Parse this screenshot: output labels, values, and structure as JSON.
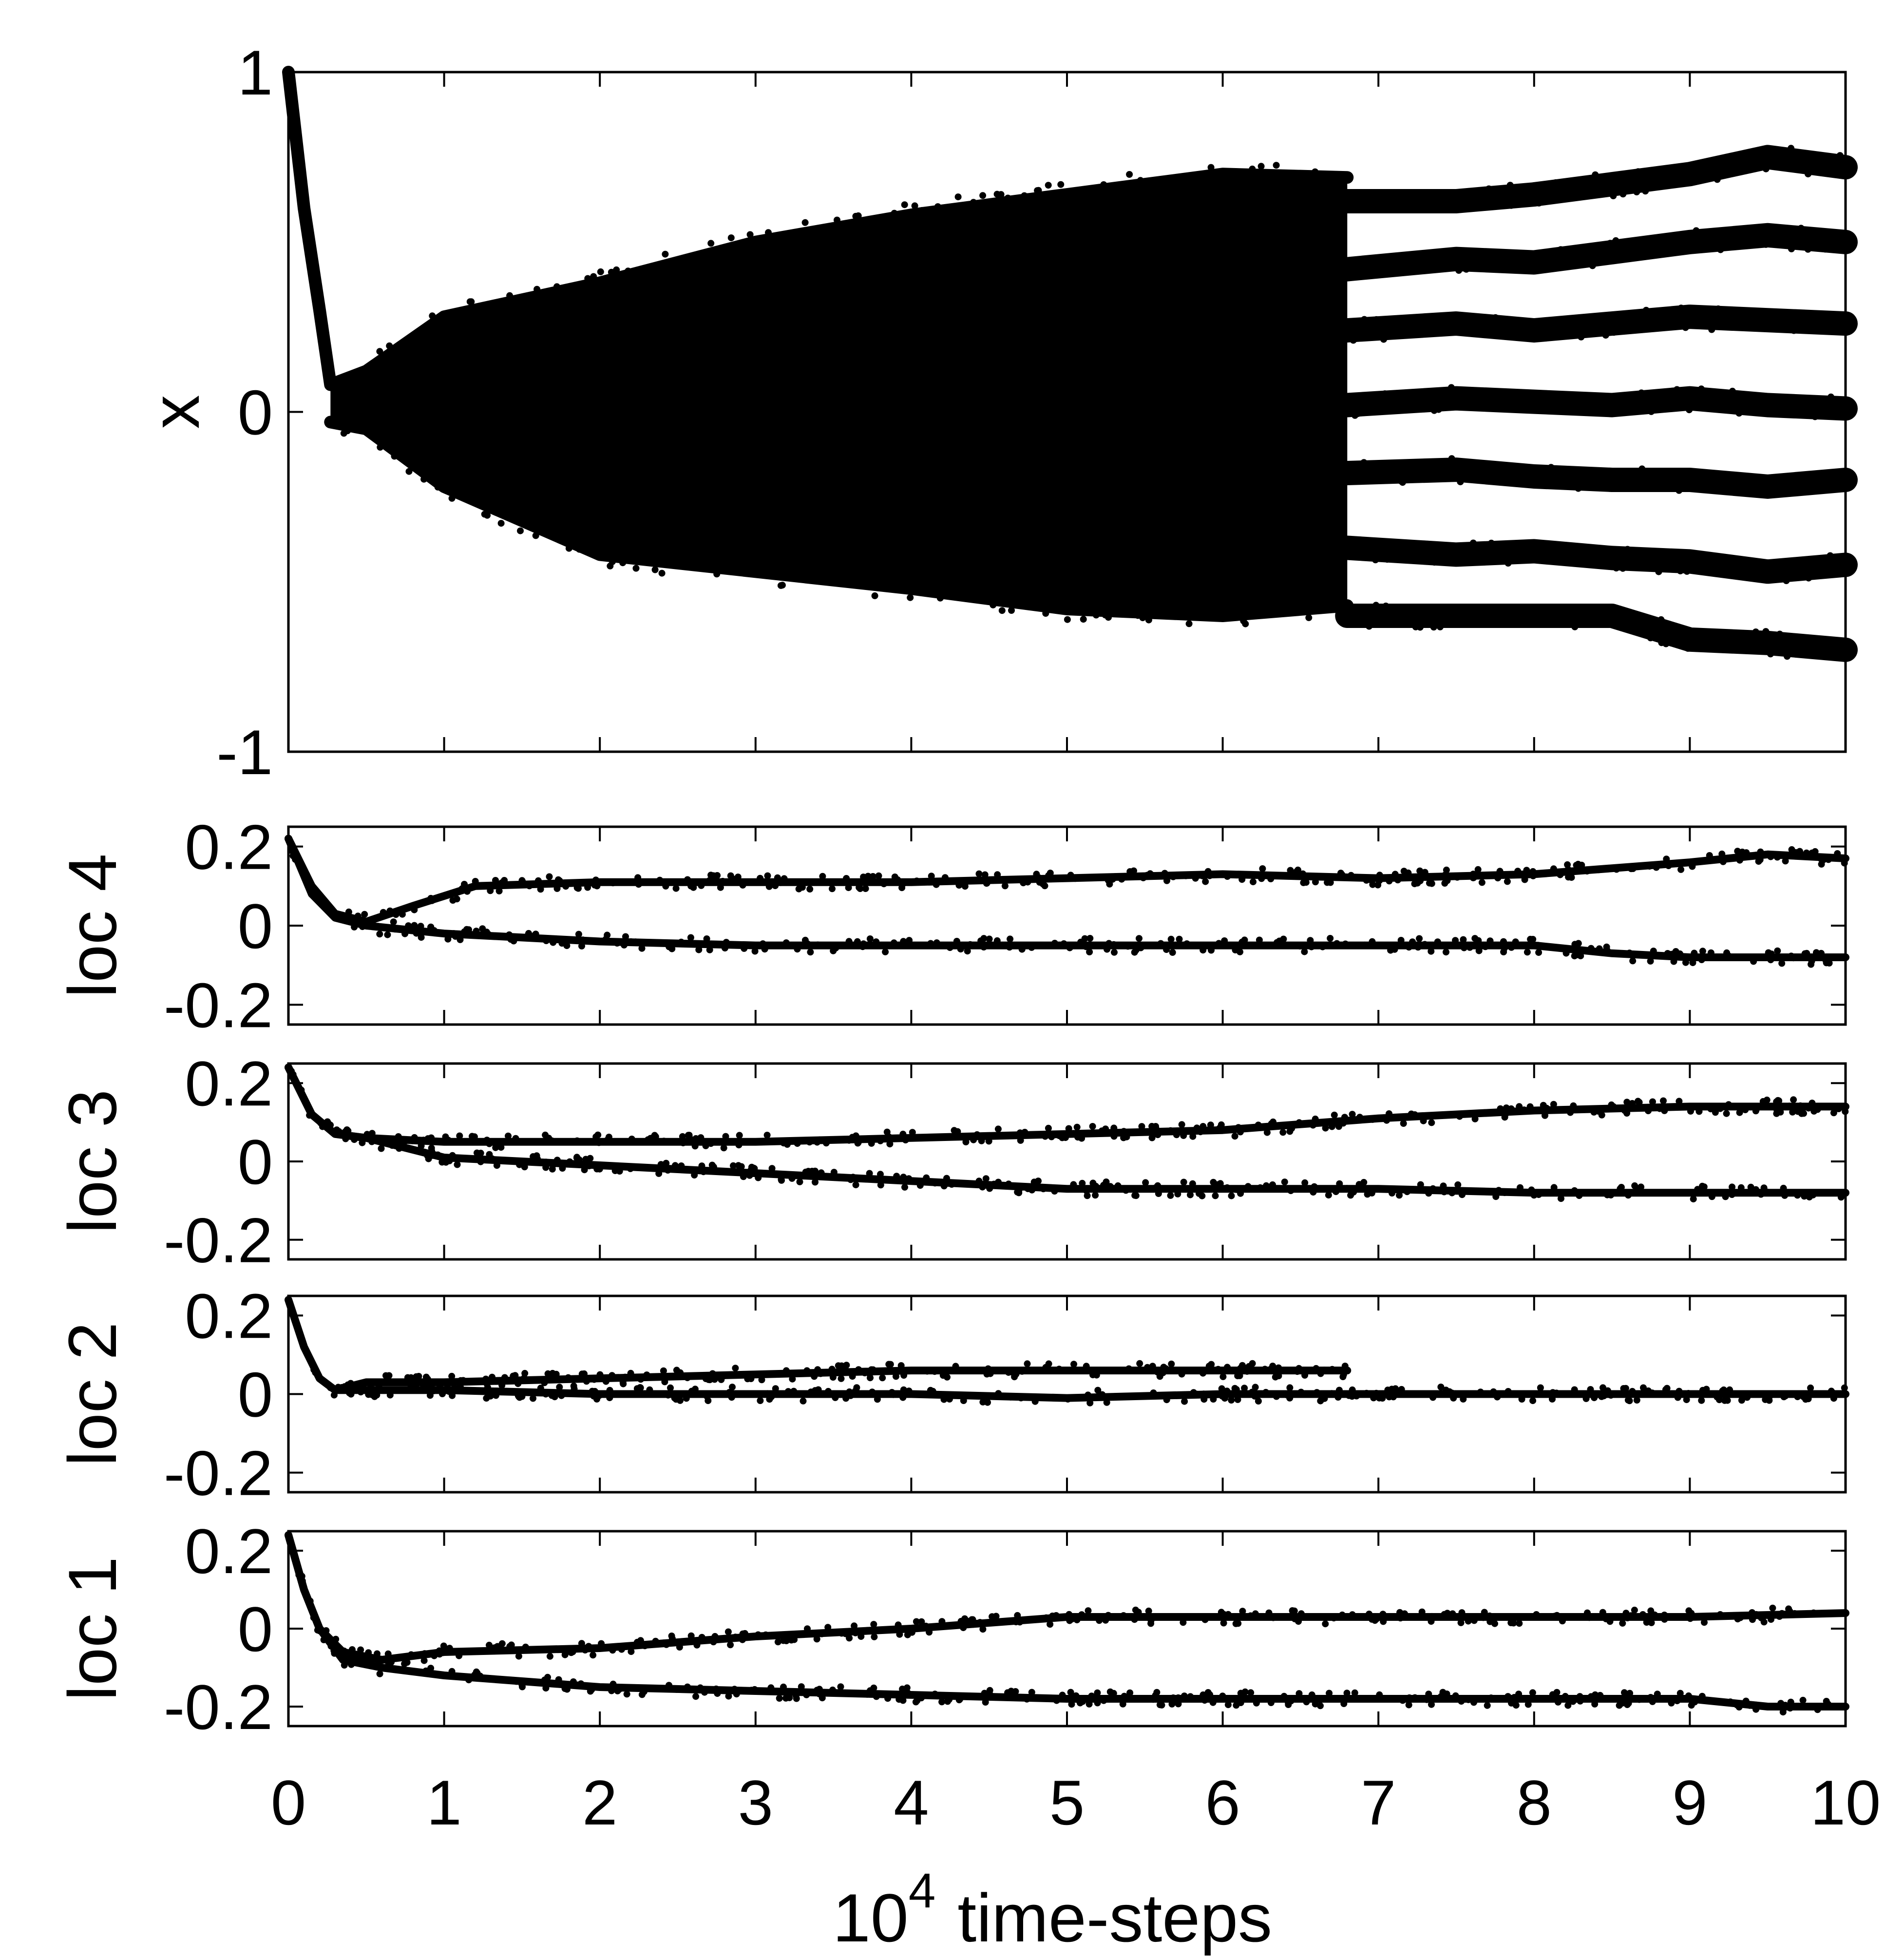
{
  "chart_data": [
    {
      "id": "x",
      "type": "scatter",
      "ylabel": "x",
      "ylim": [
        -1,
        1
      ],
      "yticks": [
        -1,
        0,
        1
      ],
      "yticklabels": [
        "-1",
        "0",
        "1"
      ],
      "xlim": [
        0,
        10
      ],
      "description_note": "dense cloud of trajectories for 0.3-6.8, splitting into 7 bands after 6.8",
      "series": [
        {
          "x": [
            0,
            0.1,
            0.2,
            0.27,
            0.5,
            1,
            2,
            3,
            4,
            5,
            6,
            6.8
          ],
          "y": [
            1,
            0.6,
            0.3,
            0.08,
            0.12,
            0.28,
            0.38,
            0.5,
            0.58,
            0.64,
            0.7,
            0.69
          ]
        },
        {
          "x": [
            0.27,
            0.5,
            1,
            2,
            3,
            4,
            5,
            6,
            6.8
          ],
          "y": [
            -0.03,
            -0.05,
            -0.22,
            -0.42,
            -0.47,
            -0.52,
            -0.58,
            -0.6,
            -0.57
          ]
        },
        {
          "x": [
            6.8,
            7.5,
            8,
            8.5,
            9,
            9.5,
            10
          ],
          "y": [
            0.62,
            0.62,
            0.64,
            0.67,
            0.7,
            0.75,
            0.72
          ]
        },
        {
          "x": [
            6.8,
            7.5,
            8,
            8.5,
            9,
            9.5,
            10
          ],
          "y": [
            0.42,
            0.45,
            0.44,
            0.47,
            0.5,
            0.52,
            0.5
          ]
        },
        {
          "x": [
            6.8,
            7.5,
            8,
            8.5,
            9,
            9.5,
            10
          ],
          "y": [
            0.24,
            0.26,
            0.24,
            0.26,
            0.28,
            0.27,
            0.26
          ]
        },
        {
          "x": [
            6.8,
            7.5,
            8,
            8.5,
            9,
            9.5,
            10
          ],
          "y": [
            0.02,
            0.04,
            0.03,
            0.02,
            0.04,
            0.02,
            0.01
          ]
        },
        {
          "x": [
            6.8,
            7.5,
            8,
            8.5,
            9,
            9.5,
            10
          ],
          "y": [
            -0.18,
            -0.17,
            -0.19,
            -0.2,
            -0.2,
            -0.22,
            -0.2
          ]
        },
        {
          "x": [
            6.8,
            7.5,
            8,
            8.5,
            9,
            9.5,
            10
          ],
          "y": [
            -0.4,
            -0.42,
            -0.41,
            -0.43,
            -0.44,
            -0.47,
            -0.45
          ]
        },
        {
          "x": [
            6.8,
            7.5,
            8,
            8.5,
            9,
            9.5,
            10
          ],
          "y": [
            -0.6,
            -0.6,
            -0.6,
            -0.6,
            -0.67,
            -0.68,
            -0.7
          ]
        }
      ]
    },
    {
      "id": "loc4",
      "type": "scatter",
      "ylabel": "loc 4",
      "ylim": [
        -0.25,
        0.25
      ],
      "yticks": [
        -0.2,
        0,
        0.2
      ],
      "yticklabels": [
        "-0.2",
        "0",
        "0.2"
      ],
      "xlim": [
        0,
        10
      ],
      "series": [
        {
          "x": [
            0,
            0.15,
            0.3,
            0.5,
            0.8,
            1.2,
            2,
            3,
            4,
            5,
            6,
            7,
            8,
            9,
            9.5,
            10
          ],
          "y": [
            0.22,
            0.1,
            0.03,
            0.01,
            0.05,
            0.1,
            0.11,
            0.11,
            0.11,
            0.12,
            0.13,
            0.12,
            0.13,
            0.16,
            0.18,
            0.17
          ]
        },
        {
          "x": [
            0,
            0.15,
            0.3,
            0.5,
            1,
            2,
            3,
            4,
            5,
            6,
            7,
            8,
            8.5,
            9,
            10
          ],
          "y": [
            0.22,
            0.08,
            0.02,
            0,
            -0.02,
            -0.04,
            -0.05,
            -0.05,
            -0.05,
            -0.05,
            -0.05,
            -0.05,
            -0.07,
            -0.08,
            -0.08
          ]
        }
      ]
    },
    {
      "id": "loc3",
      "type": "scatter",
      "ylabel": "loc 3",
      "ylim": [
        -0.25,
        0.25
      ],
      "yticks": [
        -0.2,
        0,
        0.2
      ],
      "yticklabels": [
        "-0.2",
        "0",
        "0.2"
      ],
      "xlim": [
        0,
        10
      ],
      "series": [
        {
          "x": [
            0,
            0.15,
            0.3,
            0.5,
            1,
            2,
            3,
            4,
            5,
            6,
            7,
            8,
            9,
            10
          ],
          "y": [
            0.24,
            0.12,
            0.07,
            0.06,
            0.05,
            0.05,
            0.05,
            0.06,
            0.07,
            0.08,
            0.11,
            0.13,
            0.14,
            0.14
          ]
        },
        {
          "x": [
            0,
            0.15,
            0.3,
            0.5,
            1,
            2,
            3,
            4,
            5,
            6,
            7,
            8,
            9,
            10
          ],
          "y": [
            0.24,
            0.12,
            0.07,
            0.06,
            0.01,
            -0.01,
            -0.03,
            -0.05,
            -0.07,
            -0.07,
            -0.07,
            -0.08,
            -0.08,
            -0.08
          ]
        }
      ]
    },
    {
      "id": "loc2",
      "type": "scatter",
      "ylabel": "loc 2",
      "ylim": [
        -0.25,
        0.25
      ],
      "yticks": [
        -0.2,
        0,
        0.2
      ],
      "yticklabels": [
        "-0.2",
        "0",
        "0.2"
      ],
      "xlim": [
        0,
        10
      ],
      "series": [
        {
          "x": [
            0,
            0.1,
            0.2,
            0.3,
            0.5,
            1,
            2,
            3,
            4,
            5,
            6,
            6.8
          ],
          "y": [
            0.24,
            0.12,
            0.04,
            0.01,
            0.03,
            0.03,
            0.04,
            0.05,
            0.06,
            0.06,
            0.06,
            0.06
          ]
        },
        {
          "x": [
            0.3,
            1,
            2,
            3,
            4,
            5,
            6,
            7,
            8,
            9,
            10
          ],
          "y": [
            0.01,
            0.01,
            0,
            0,
            0,
            -0.01,
            0,
            0,
            0,
            0,
            0
          ]
        }
      ]
    },
    {
      "id": "loc1",
      "type": "scatter",
      "ylabel": "loc 1",
      "ylim": [
        -0.25,
        0.25
      ],
      "yticks": [
        -0.2,
        0,
        0.2
      ],
      "yticklabels": [
        "-0.2",
        "0",
        "0.2"
      ],
      "xlim": [
        0,
        10
      ],
      "xticks": [
        0,
        1,
        2,
        3,
        4,
        5,
        6,
        7,
        8,
        9,
        10
      ],
      "xticklabels": [
        "0",
        "1",
        "2",
        "3",
        "4",
        "5",
        "6",
        "7",
        "8",
        "9",
        "10"
      ],
      "xlabel": "time-steps",
      "xlabel_base": "10",
      "xlabel_exp": "4",
      "series": [
        {
          "x": [
            0,
            0.1,
            0.2,
            0.35,
            0.6,
            1,
            2,
            3,
            4,
            5,
            6,
            7,
            8,
            9,
            10
          ],
          "y": [
            0.24,
            0.1,
            0,
            -0.06,
            -0.08,
            -0.06,
            -0.05,
            -0.02,
            0,
            0.03,
            0.03,
            0.03,
            0.03,
            0.03,
            0.04
          ]
        },
        {
          "x": [
            0,
            0.1,
            0.2,
            0.35,
            0.6,
            1,
            2,
            3,
            4,
            5,
            6,
            7,
            8,
            9,
            9.5,
            10
          ],
          "y": [
            0.24,
            0.1,
            0,
            -0.08,
            -0.1,
            -0.12,
            -0.15,
            -0.16,
            -0.17,
            -0.18,
            -0.18,
            -0.18,
            -0.18,
            -0.18,
            -0.2,
            -0.2
          ]
        }
      ]
    }
  ]
}
